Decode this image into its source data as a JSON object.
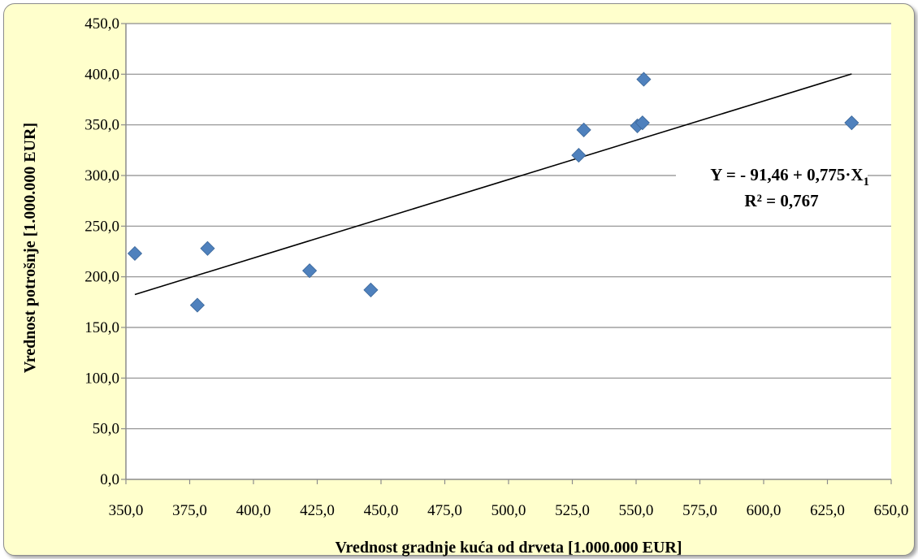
{
  "chart_data": {
    "type": "scatter",
    "xlabel": "Vrednost gradnje kuća od drveta [1.000.000 EUR]",
    "ylabel": "Vrednost potrošnje [1.000.000 EUR]",
    "xlim": [
      350,
      650
    ],
    "ylim": [
      0,
      450
    ],
    "x_ticks": [
      "350,0",
      "375,0",
      "400,0",
      "425,0",
      "450,0",
      "475,0",
      "500,0",
      "525,0",
      "550,0",
      "575,0",
      "600,0",
      "625,0",
      "650,0"
    ],
    "y_ticks": [
      "0,0",
      "50,0",
      "100,0",
      "150,0",
      "200,0",
      "250,0",
      "300,0",
      "350,0",
      "400,0",
      "450,0"
    ],
    "grid": "horizontal",
    "series": [
      {
        "marker": "diamond",
        "color": "#4f81bd",
        "x": [
          353.5,
          378.0,
          382.0,
          422.0,
          446.0,
          527.5,
          529.5,
          550.5,
          552.5,
          553.0,
          634.5
        ],
        "y": [
          223,
          172,
          228,
          206,
          187,
          320,
          345,
          349,
          352,
          395,
          352
        ]
      }
    ],
    "trendline": {
      "type": "linear",
      "intercept": -91.46,
      "slope": 0.775,
      "x_range": [
        353.5,
        634.5
      ],
      "color": "#000000"
    },
    "annotations": {
      "equation_prefix": "Y = - 91,46 + 0,775·X",
      "equation_subscript": "1",
      "r_squared": "R² = 0,767"
    }
  }
}
